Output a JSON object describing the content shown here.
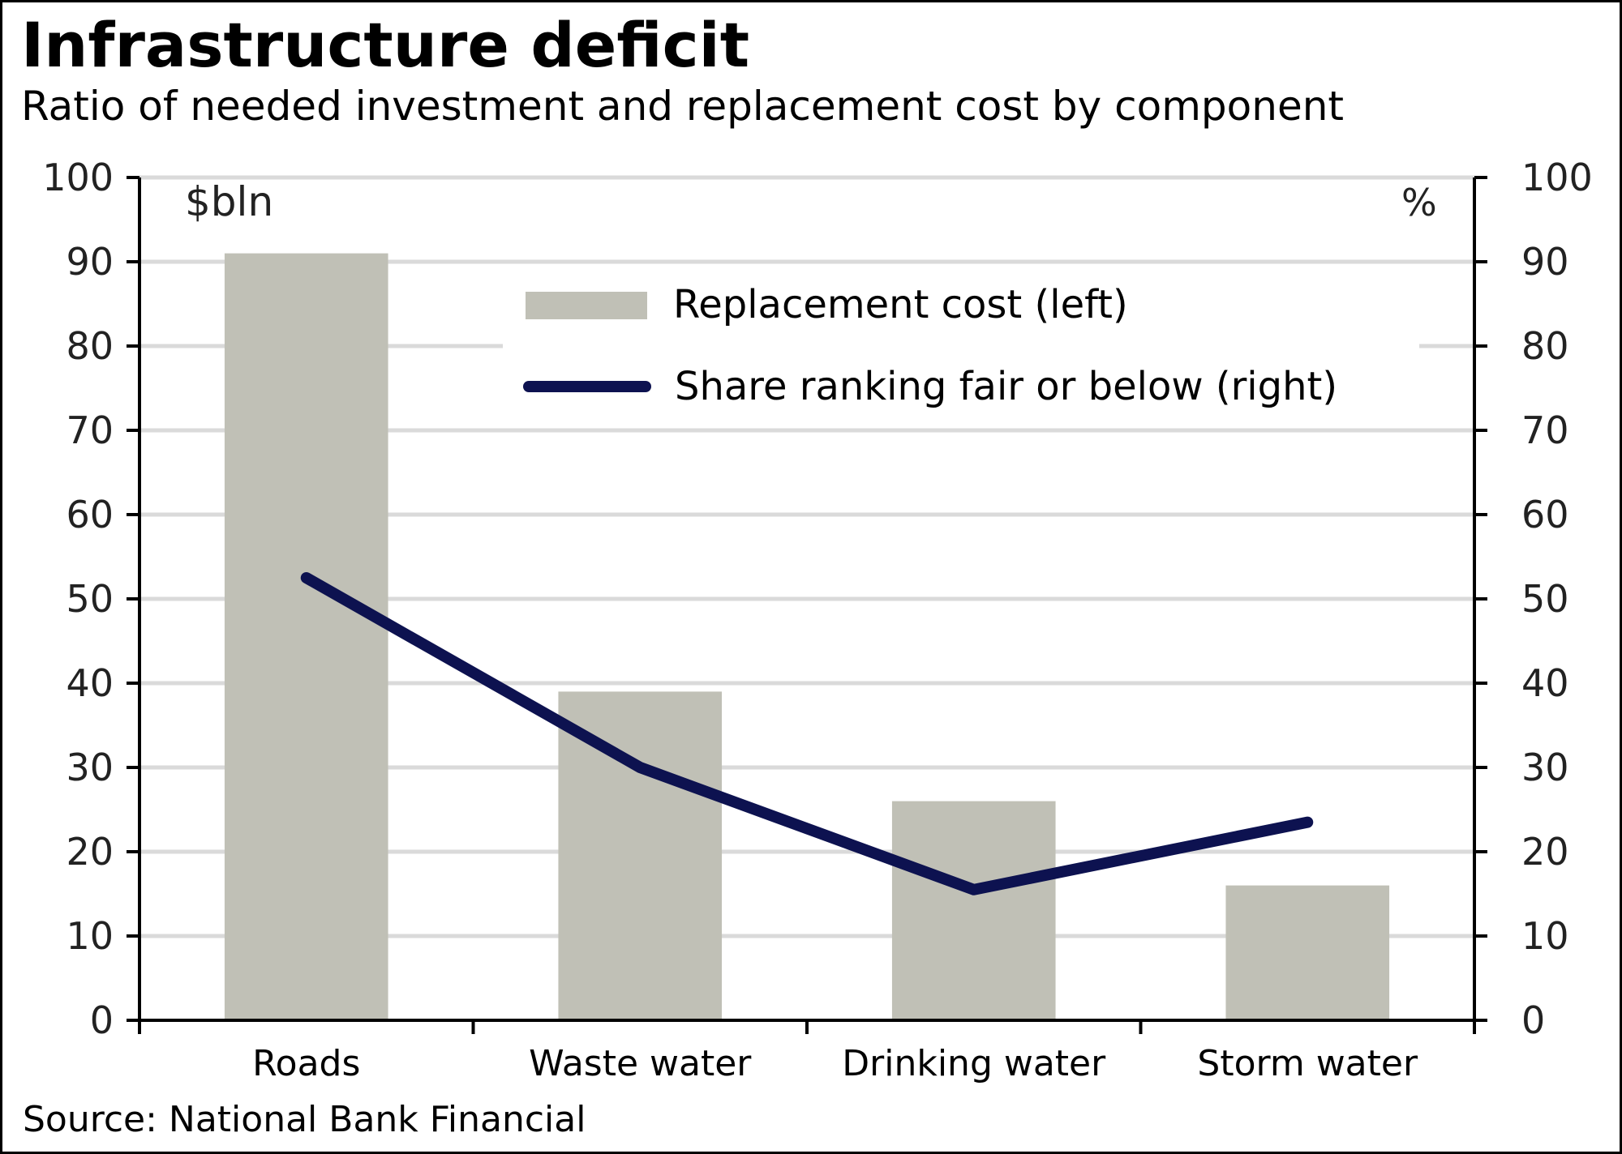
{
  "chart_data": {
    "type": "bar+line",
    "title": "Infrastructure deficit",
    "subtitle": "Ratio of needed investment and replacement cost by component",
    "categories": [
      "Roads",
      "Waste water",
      "Drinking water",
      "Storm water"
    ],
    "series": [
      {
        "name": "Replacement cost (left)",
        "type": "bar",
        "axis": "left",
        "values": [
          91,
          39,
          26,
          16
        ],
        "color": "#c0c0b6"
      },
      {
        "name": "Share ranking fair or below (right)",
        "type": "line",
        "axis": "right",
        "values": [
          52.5,
          30,
          15.5,
          23.5
        ],
        "color": "#0d1250"
      }
    ],
    "left_axis": {
      "unit_label": "$bln",
      "ylim": [
        0,
        100
      ],
      "ticks": [
        "0",
        "10",
        "20",
        "30",
        "40",
        "50",
        "60",
        "70",
        "80",
        "90",
        "100"
      ]
    },
    "right_axis": {
      "unit_label": "%",
      "ylim": [
        0,
        100
      ],
      "ticks": [
        "0",
        "10",
        "20",
        "30",
        "40",
        "50",
        "60",
        "70",
        "80",
        "90",
        "100"
      ]
    },
    "grid": true,
    "legend_position": "top-center",
    "source": "Source: National Bank Financial"
  }
}
